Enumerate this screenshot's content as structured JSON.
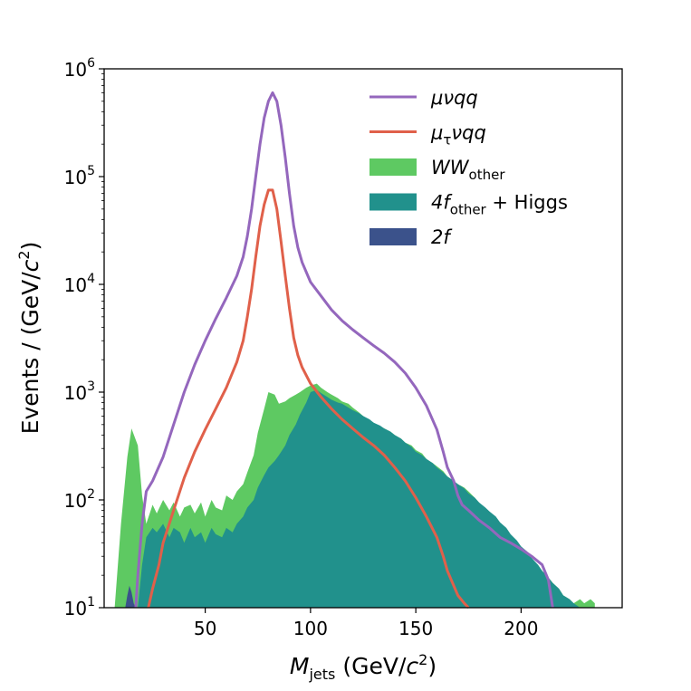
{
  "chart_data": {
    "type": "area",
    "scale_y": "log",
    "xlabel": {
      "main": "M",
      "sub": "jets",
      "unit_pre": " (GeV/",
      "unit_c": "c",
      "unit_sup": "2",
      "unit_post": ")"
    },
    "ylabel": {
      "pre": "Events / (GeV/",
      "c": "c",
      "sup": "2",
      "post": ")"
    },
    "xlim": [
      2,
      248
    ],
    "ylim": [
      10,
      1000000
    ],
    "grid": false,
    "legend_position": "top-right",
    "x_ticks": [
      {
        "value": 50,
        "label": "50"
      },
      {
        "value": 100,
        "label": "100"
      },
      {
        "value": 150,
        "label": "150"
      },
      {
        "value": 200,
        "label": "200"
      }
    ],
    "y_ticks": [
      {
        "value": 10,
        "base": "10",
        "exp": "1"
      },
      {
        "value": 100,
        "base": "10",
        "exp": "2"
      },
      {
        "value": 1000,
        "base": "10",
        "exp": "3"
      },
      {
        "value": 10000,
        "base": "10",
        "exp": "4"
      },
      {
        "value": 100000,
        "base": "10",
        "exp": "5"
      },
      {
        "value": 1000000,
        "base": "10",
        "exp": "6"
      }
    ],
    "series": [
      {
        "name": "WW_other",
        "legend": {
          "main": "WW",
          "sub": "other",
          "post": ""
        },
        "style": "filled",
        "color": "#5ec962",
        "x": [
          7,
          10,
          13,
          15,
          18,
          20,
          22,
          25,
          27,
          30,
          33,
          35,
          38,
          40,
          43,
          45,
          48,
          50,
          53,
          55,
          58,
          60,
          63,
          65,
          68,
          70,
          73,
          75,
          78,
          80,
          83,
          85,
          88,
          90,
          93,
          95,
          98,
          100,
          103,
          105,
          108,
          110,
          113,
          115,
          118,
          120,
          123,
          125,
          128,
          130,
          133,
          135,
          138,
          140,
          143,
          145,
          148,
          150,
          153,
          155,
          158,
          160,
          163,
          165,
          168,
          170,
          173,
          175,
          178,
          180,
          183,
          185,
          188,
          190,
          193,
          195,
          198,
          200,
          203,
          205,
          208,
          210,
          213,
          215,
          218,
          220,
          223,
          225,
          228,
          230,
          233,
          235
        ],
        "values": [
          10,
          60,
          250,
          460,
          320,
          110,
          60,
          90,
          75,
          100,
          80,
          95,
          70,
          85,
          90,
          75,
          95,
          70,
          100,
          85,
          80,
          110,
          100,
          120,
          140,
          180,
          260,
          420,
          700,
          1000,
          950,
          780,
          820,
          880,
          950,
          1000,
          1100,
          1150,
          1200,
          1100,
          1000,
          950,
          880,
          820,
          780,
          720,
          650,
          600,
          550,
          520,
          480,
          460,
          430,
          400,
          370,
          340,
          320,
          290,
          270,
          240,
          220,
          205,
          185,
          165,
          150,
          140,
          130,
          120,
          105,
          95,
          82,
          75,
          66,
          60,
          52,
          45,
          40,
          35,
          30,
          28,
          25,
          22,
          19,
          17,
          15,
          13,
          12,
          11,
          12,
          11,
          12,
          11
        ]
      },
      {
        "name": "4f_other + Higgs",
        "legend": {
          "main": "4f",
          "sub": "other",
          "post": " + Higgs"
        },
        "style": "filled",
        "color": "#21918c",
        "x": [
          18,
          20,
          22,
          25,
          27,
          30,
          33,
          35,
          38,
          40,
          43,
          45,
          48,
          50,
          53,
          55,
          58,
          60,
          63,
          65,
          68,
          70,
          73,
          75,
          78,
          80,
          83,
          85,
          88,
          90,
          93,
          95,
          98,
          100,
          103,
          105,
          108,
          110,
          113,
          115,
          118,
          120,
          123,
          125,
          128,
          130,
          133,
          135,
          138,
          140,
          143,
          145,
          148,
          150,
          153,
          155,
          158,
          160,
          163,
          165,
          168,
          170,
          173,
          175,
          178,
          180,
          183,
          185,
          188,
          190,
          193,
          195,
          198,
          200,
          203,
          205,
          208,
          210,
          213,
          215,
          218,
          220,
          223,
          225,
          228,
          230
        ],
        "values": [
          10,
          25,
          45,
          55,
          50,
          60,
          45,
          55,
          50,
          40,
          55,
          45,
          50,
          40,
          55,
          48,
          45,
          55,
          50,
          60,
          70,
          85,
          100,
          130,
          170,
          200,
          230,
          260,
          320,
          400,
          500,
          620,
          800,
          1000,
          1050,
          980,
          900,
          850,
          800,
          780,
          720,
          680,
          640,
          600,
          560,
          520,
          490,
          460,
          430,
          400,
          370,
          340,
          310,
          280,
          260,
          240,
          220,
          200,
          180,
          165,
          150,
          140,
          128,
          115,
          105,
          95,
          85,
          78,
          70,
          62,
          55,
          48,
          42,
          37,
          33,
          29,
          25,
          22,
          19,
          17,
          15,
          13,
          12,
          11,
          10,
          10
        ]
      },
      {
        "name": "2f",
        "legend": {
          "main": "2f",
          "sub": "",
          "post": ""
        },
        "style": "filled",
        "color": "#3b528b",
        "x": [
          12,
          13,
          14,
          15,
          16,
          17
        ],
        "values": [
          10,
          13,
          16,
          14,
          11,
          10
        ]
      },
      {
        "name": "mu nu q q",
        "legend": {
          "main": "μνqq",
          "sub": "",
          "post": ""
        },
        "style": "line",
        "color": "#9467bd",
        "x": [
          17,
          18,
          20,
          22,
          25,
          30,
          35,
          40,
          45,
          50,
          55,
          60,
          65,
          68,
          70,
          72,
          74,
          76,
          78,
          80,
          82,
          84,
          86,
          88,
          90,
          92,
          94,
          96,
          100,
          105,
          110,
          115,
          120,
          125,
          130,
          135,
          140,
          145,
          150,
          155,
          160,
          163,
          165,
          168,
          170,
          172,
          175,
          180,
          185,
          190,
          195,
          200,
          205,
          210,
          213,
          215
        ],
        "values": [
          10,
          20,
          60,
          120,
          150,
          250,
          500,
          1000,
          1800,
          3000,
          4800,
          7500,
          12000,
          18000,
          28000,
          50000,
          100000,
          200000,
          350000,
          500000,
          600000,
          500000,
          300000,
          150000,
          70000,
          35000,
          22000,
          16000,
          10500,
          7800,
          5800,
          4600,
          3800,
          3200,
          2700,
          2300,
          1900,
          1500,
          1100,
          750,
          450,
          280,
          200,
          150,
          110,
          90,
          80,
          65,
          55,
          45,
          40,
          35,
          30,
          25,
          18,
          10
        ]
      },
      {
        "name": "mu_tau nu q q",
        "legend": {
          "main": "μ",
          "sub": "τ",
          "post": "νqq"
        },
        "style": "line",
        "color": "#e0604a",
        "x": [
          23,
          25,
          28,
          30,
          35,
          40,
          45,
          50,
          55,
          60,
          65,
          68,
          70,
          72,
          74,
          76,
          78,
          80,
          82,
          84,
          86,
          88,
          90,
          92,
          94,
          96,
          100,
          105,
          110,
          115,
          120,
          125,
          130,
          135,
          140,
          145,
          150,
          155,
          160,
          163,
          165,
          168,
          170,
          173,
          175
        ],
        "values": [
          10,
          15,
          25,
          40,
          80,
          160,
          280,
          450,
          700,
          1100,
          1900,
          3000,
          5000,
          9000,
          18000,
          35000,
          55000,
          75000,
          75000,
          50000,
          25000,
          12000,
          6000,
          3200,
          2200,
          1700,
          1200,
          900,
          700,
          560,
          460,
          380,
          320,
          260,
          200,
          150,
          105,
          70,
          45,
          30,
          22,
          16,
          13,
          11,
          10
        ]
      }
    ]
  }
}
